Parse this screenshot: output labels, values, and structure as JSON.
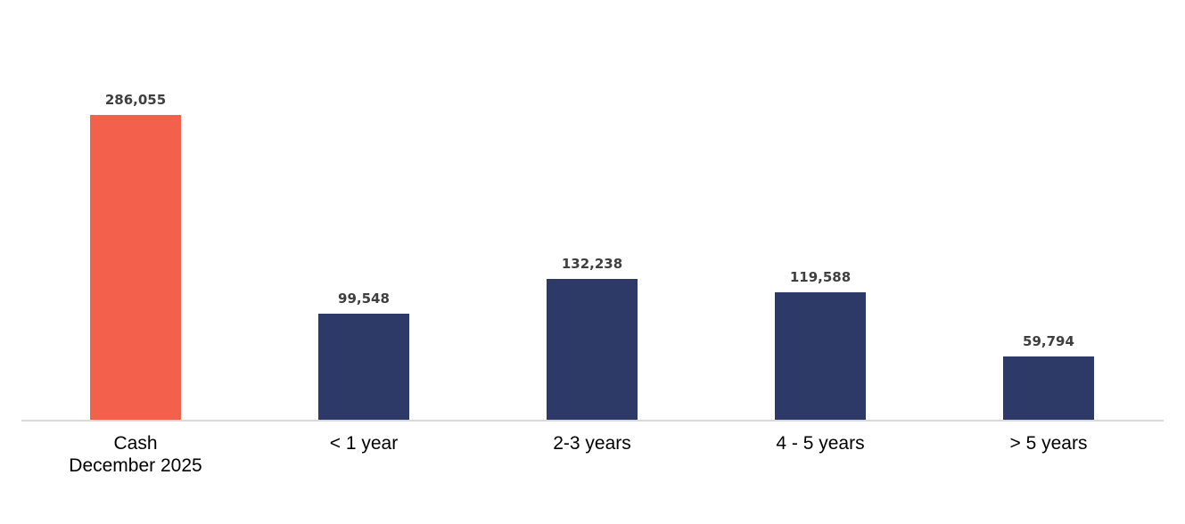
{
  "chart_data": {
    "type": "bar",
    "title": "",
    "xlabel": "",
    "ylabel": "",
    "categories": [
      "Cash\nDecember 2025",
      "< 1 year",
      "2-3 years",
      "4 - 5 years",
      "> 5 years"
    ],
    "values": [
      286055,
      99548,
      132238,
      119588,
      59794
    ],
    "value_labels": [
      "286,055",
      "99,548",
      "132,238",
      "119,588",
      "59,794"
    ],
    "bar_colors": [
      "#F3614C",
      "#2D3A68",
      "#2D3A68",
      "#2D3A68",
      "#2D3A68"
    ],
    "ylim": [
      0,
      286055
    ],
    "grid": false,
    "legend": "none",
    "data_label_color": "#3F3F3F",
    "category_label_color": "#000000",
    "axis_line_color": "#D9D9D9",
    "background_color": "#FFFFFF"
  }
}
